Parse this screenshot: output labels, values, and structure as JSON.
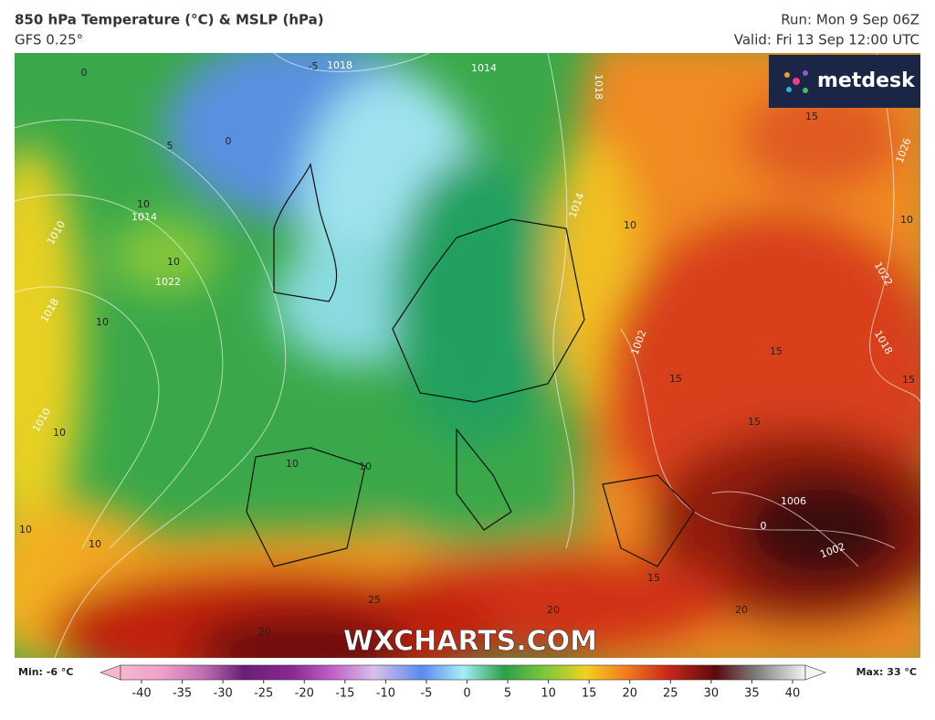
{
  "header": {
    "title": "850 hPa Temperature (°C) & MSLP (hPa)",
    "subtitle": "GFS 0.25°",
    "run": "Run: Mon 9 Sep 06Z",
    "valid": "Valid: Fri 13 Sep 12:00 UTC"
  },
  "brand": "metdesk",
  "watermark": "WXCHARTS.COM",
  "map": {
    "labels": [
      "0",
      "-5",
      "1018",
      "1014",
      "1018",
      "5",
      "0",
      "10",
      "1014",
      "10",
      "1010",
      "1022",
      "1018",
      "10",
      "15",
      "1026",
      "10",
      "1022",
      "1014",
      "10",
      "1002",
      "15",
      "15",
      "1018",
      "15",
      "15",
      "1010",
      "10",
      "10",
      "10",
      "1006",
      "0",
      "1002",
      "15",
      "20",
      "20",
      "25",
      "20",
      "10",
      "10"
    ]
  },
  "legend": {
    "min": "Min: -6 °C",
    "max": "Max: 33 °C",
    "ticks": [
      -40,
      -35,
      -30,
      -25,
      -20,
      -15,
      -10,
      -5,
      0,
      5,
      10,
      15,
      20,
      25,
      30,
      35,
      40
    ]
  }
}
